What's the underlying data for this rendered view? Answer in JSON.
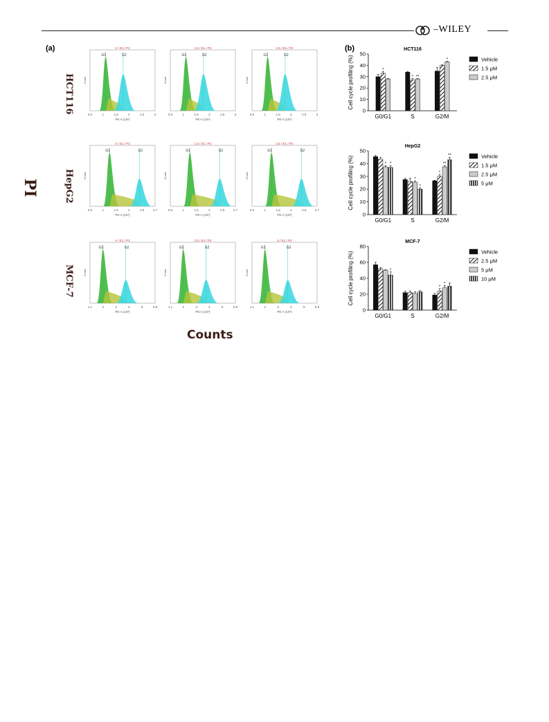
{
  "header": {
    "brand": "WILEY"
  },
  "figure": {
    "panel_a_label": "(a)",
    "panel_b_label": "(b)",
    "y_axis_label": "PI",
    "x_axis_label": "Counts",
    "flow": {
      "rows": [
        {
          "cell_line": "HCT116",
          "tick_labels": [
            "0.5",
            "1",
            "1.5",
            "2",
            "2.5",
            "3"
          ],
          "plots": [
            {
              "gate": "V / E1 / P2",
              "g1": "G1",
              "g2": "G2",
              "y_axis": "Count",
              "x_axis": "PE-A (10⁶)"
            },
            {
              "gate": "1.5 / E1 / P2",
              "g1": "G1",
              "g2": "G2",
              "y_axis": "Count",
              "x_axis": "PE-A (10⁶)"
            },
            {
              "gate": "2.5 / E1 / P2",
              "g1": "G1",
              "g2": "G2",
              "y_axis": "Count",
              "x_axis": "PE-A (10⁶)"
            }
          ]
        },
        {
          "cell_line": "HepG2",
          "tick_labels": [
            "0.5",
            "1",
            "1.5",
            "2",
            "2.5",
            "2.7"
          ],
          "plots": [
            {
              "gate": "V / E1 / P2",
              "g1": "G1",
              "g2": "G2",
              "y_axis": "Count",
              "x_axis": "PE-A (10⁶)"
            },
            {
              "gate": "1.5 / E1 / P2",
              "g1": "G1",
              "g2": "G2",
              "y_axis": "Count",
              "x_axis": "PE-A (10⁶)"
            },
            {
              "gate": "2.5 / E1 / P2",
              "g1": "G1",
              "g2": "G2",
              "y_axis": "Count",
              "x_axis": "PE-A (10⁶)"
            }
          ]
        },
        {
          "cell_line": "MCF-7",
          "tick_labels": [
            "1.1",
            "2",
            "3",
            "4",
            "5",
            "5.8"
          ],
          "plots": [
            {
              "gate": "V / E1 / P2",
              "g1": "G1",
              "g2": "G2",
              "y_axis": "Count",
              "x_axis": "PE-A (10⁵)"
            },
            {
              "gate": "2.5 / E1 / P2",
              "g1": "G1",
              "g2": "G2",
              "y_axis": "Count",
              "x_axis": "PE-A (10⁵)"
            },
            {
              "gate": "5 / E1 / P2",
              "g1": "G1",
              "g2": "G2",
              "y_axis": "Count",
              "x_axis": "PE-A (10⁵)"
            }
          ]
        }
      ]
    }
  },
  "colors": {
    "vehicle": "#111111",
    "hatch": "#111111",
    "light": "#cccccc",
    "g1_fill": "#3cb83c",
    "s_fill": "#b5c43a",
    "g2_fill": "#3fd8e0"
  },
  "chart_data": [
    {
      "type": "bar",
      "title": "HCT116",
      "ylabel": "Cell cycle profiling (%)",
      "xlabel": "",
      "categories": [
        "G0/G1",
        "S",
        "G2/M"
      ],
      "ylim": [
        0,
        50
      ],
      "yticks": [
        0,
        10,
        20,
        30,
        40,
        50
      ],
      "series": [
        {
          "name": "Vehicle",
          "pattern": "solid",
          "values": [
            30,
            34,
            35
          ],
          "errors": [
            2,
            0.5,
            3
          ],
          "sig": [
            "",
            "",
            ""
          ]
        },
        {
          "name": "1.5 μM",
          "pattern": "hatch",
          "values": [
            33,
            27,
            40
          ],
          "errors": [
            1.5,
            1.5,
            0.5
          ],
          "sig": [
            "*",
            "*",
            ""
          ]
        },
        {
          "name": "2.5 μM",
          "pattern": "light",
          "values": [
            28,
            28,
            43
          ],
          "errors": [
            0.5,
            0.5,
            0.5
          ],
          "sig": [
            "",
            "**",
            "*"
          ]
        }
      ]
    },
    {
      "type": "bar",
      "title": "HepG2",
      "ylabel": "Cell cycle profiling (%)",
      "xlabel": "",
      "categories": [
        "G0/G1",
        "S",
        "G2/M"
      ],
      "ylim": [
        0,
        50
      ],
      "yticks": [
        0,
        10,
        20,
        30,
        40,
        50
      ],
      "series": [
        {
          "name": "Vehicle",
          "pattern": "solid",
          "values": [
            45.5,
            27.5,
            26.5
          ],
          "errors": [
            1,
            1,
            0.5
          ],
          "sig": [
            "",
            "",
            ""
          ]
        },
        {
          "name": "1.5 μM",
          "pattern": "hatch",
          "values": [
            43.5,
            26,
            30
          ],
          "errors": [
            1.5,
            2.5,
            1.5
          ],
          "sig": [
            "",
            "",
            "*"
          ]
        },
        {
          "name": "2.5 μM",
          "pattern": "light",
          "values": [
            37.5,
            25.5,
            37.5
          ],
          "errors": [
            1,
            1,
            1
          ],
          "sig": [
            "*",
            "*",
            "**"
          ]
        },
        {
          "name": "5 μM",
          "pattern": "vstripe",
          "values": [
            37,
            20,
            43
          ],
          "errors": [
            1.5,
            1,
            2
          ],
          "sig": [
            "*",
            "*",
            "**"
          ]
        }
      ]
    },
    {
      "type": "bar",
      "title": "MCF-7",
      "ylabel": "Cell cycle profiling (%)",
      "xlabel": "",
      "categories": [
        "G0/G1",
        "S",
        "G2/M"
      ],
      "ylim": [
        0,
        80
      ],
      "yticks": [
        0,
        20,
        40,
        60,
        80
      ],
      "series": [
        {
          "name": "Vehicle",
          "pattern": "solid",
          "values": [
            57,
            22,
            19
          ],
          "errors": [
            3,
            2,
            2
          ],
          "sig": [
            "",
            "",
            ""
          ]
        },
        {
          "name": "2.5 μM",
          "pattern": "hatch",
          "values": [
            52,
            22,
            24
          ],
          "errors": [
            1.5,
            2,
            3
          ],
          "sig": [
            "",
            "",
            "*"
          ]
        },
        {
          "name": "5 μM",
          "pattern": "light",
          "values": [
            50,
            21,
            28
          ],
          "errors": [
            1,
            2,
            3
          ],
          "sig": [
            "",
            "",
            "*"
          ]
        },
        {
          "name": "10 μM",
          "pattern": "vstripe",
          "values": [
            44,
            23,
            30
          ],
          "errors": [
            4,
            1.5,
            4
          ],
          "sig": [
            "*",
            "",
            ""
          ]
        }
      ]
    }
  ]
}
